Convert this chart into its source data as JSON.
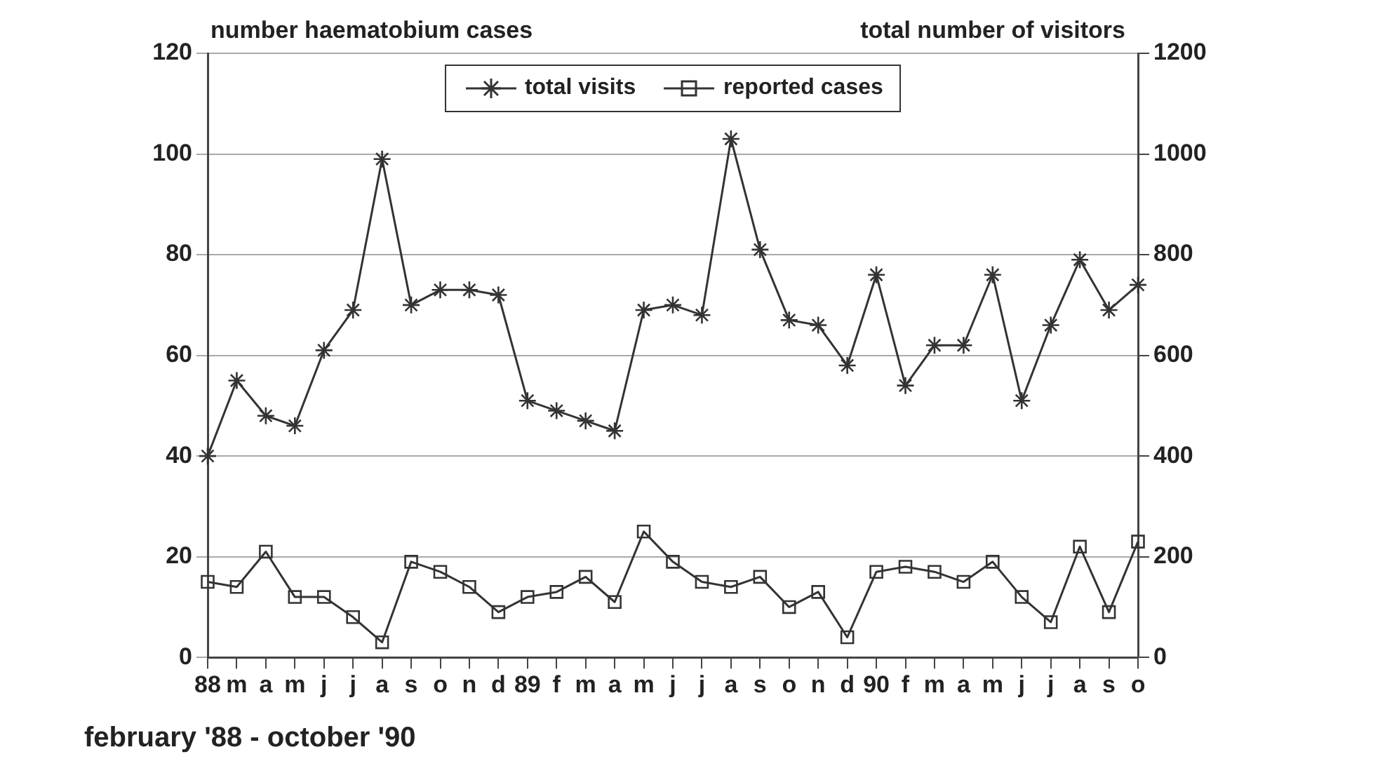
{
  "chart_data": {
    "type": "line",
    "ylabel": "number haematobium cases",
    "y2label": "total number of visitors",
    "xlabel": "february '88 - october '90",
    "categories": [
      "88",
      "m",
      "a",
      "m",
      "j",
      "j",
      "a",
      "s",
      "o",
      "n",
      "d",
      "89",
      "f",
      "m",
      "a",
      "m",
      "j",
      "j",
      "a",
      "s",
      "o",
      "n",
      "d",
      "90",
      "f",
      "m",
      "a",
      "m",
      "j",
      "j",
      "a",
      "s",
      "o"
    ],
    "series": [
      {
        "name": "total visits",
        "color": "#333333",
        "axis": "y2",
        "marker": "cross",
        "values": [
          400,
          550,
          480,
          460,
          610,
          690,
          990,
          700,
          730,
          730,
          720,
          510,
          490,
          470,
          450,
          690,
          700,
          680,
          1030,
          810,
          670,
          660,
          580,
          760,
          540,
          620,
          620,
          760,
          510,
          660,
          790,
          690,
          740
        ]
      },
      {
        "name": "reported cases",
        "color": "#333333",
        "axis": "y",
        "marker": "square",
        "values": [
          15,
          14,
          21,
          12,
          12,
          8,
          3,
          19,
          17,
          14,
          9,
          12,
          13,
          16,
          11,
          25,
          19,
          15,
          14,
          16,
          10,
          13,
          4,
          17,
          18,
          17,
          15,
          19,
          12,
          7,
          22,
          9,
          23
        ]
      }
    ],
    "ylim": [
      0,
      120
    ],
    "yticks": [
      0,
      20,
      40,
      60,
      80,
      100,
      120
    ],
    "y2lim": [
      0,
      1200
    ],
    "y2ticks": [
      0,
      200,
      400,
      600,
      800,
      1000,
      1200
    ],
    "grid": "y",
    "legend": "top",
    "line_style": "solid"
  }
}
